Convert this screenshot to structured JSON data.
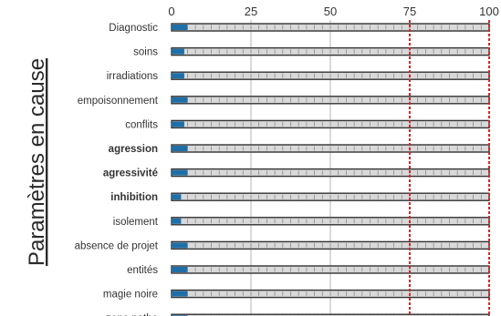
{
  "chart_data": {
    "type": "bar",
    "orientation": "horizontal",
    "ylabel": "Paramètres en cause",
    "xlim": [
      0,
      100
    ],
    "xticks": [
      0,
      25,
      50,
      75,
      100
    ],
    "categories": [
      "Diagnostic",
      "soins",
      "irradiations",
      "empoisonnement",
      "conflits",
      "agression",
      "agressivité",
      "inhibition",
      "isolement",
      "absence de projet",
      "entités",
      "magie noire",
      "zone patho"
    ],
    "bold_categories": [
      "agression",
      "agressivité",
      "inhibition"
    ],
    "values": [
      5,
      4,
      4,
      5,
      4,
      5,
      5,
      3,
      3,
      5,
      5,
      5,
      5
    ],
    "threshold": 75,
    "grid": true,
    "colors": {
      "bar_fill": "#1e6fa8",
      "track": "#d9d9d9",
      "track_border": "#333333",
      "threshold": "#d8262b",
      "grid": "#b5b5b5",
      "text": "#333333"
    }
  }
}
